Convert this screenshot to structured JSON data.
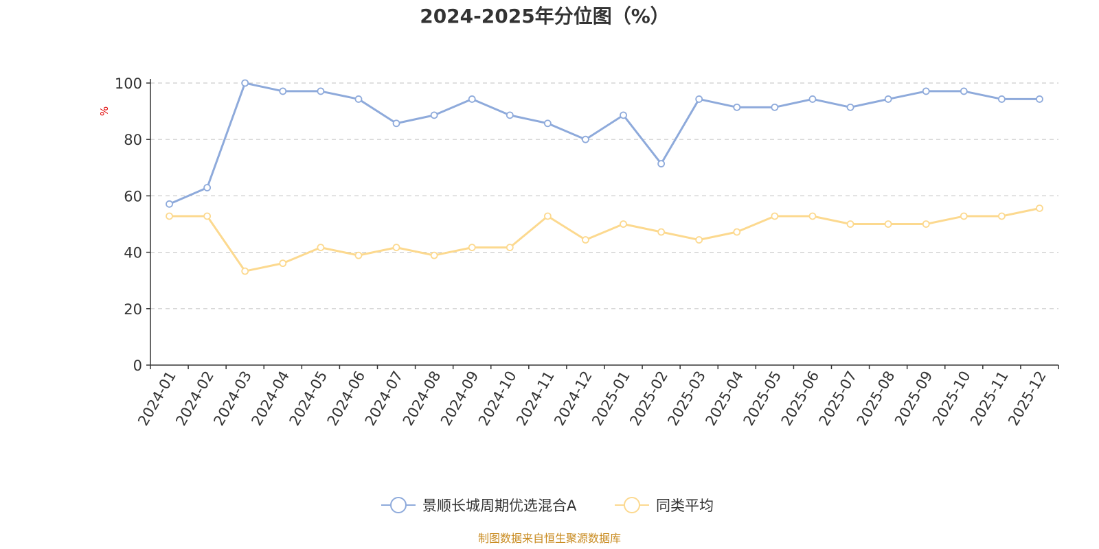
{
  "chart_data": {
    "type": "line",
    "title": "2024-2025年分位图（%）",
    "ylabel": "%",
    "ylim": [
      0,
      100
    ],
    "yticks": [
      0,
      20,
      40,
      60,
      80,
      100
    ],
    "grid": true,
    "legend_position": "bottom",
    "categories": [
      "2024-01",
      "2024-02",
      "2024-03",
      "2024-04",
      "2024-05",
      "2024-06",
      "2024-07",
      "2024-08",
      "2024-09",
      "2024-10",
      "2024-11",
      "2024-12",
      "2025-01",
      "2025-02",
      "2025-03",
      "2025-04",
      "2025-05",
      "2025-06",
      "2025-07",
      "2025-08",
      "2025-09",
      "2025-10",
      "2025-11",
      "2025-12"
    ],
    "series": [
      {
        "name": "景顺长城周期优选混合A",
        "color": "#8eaadb",
        "values": [
          57.1,
          62.9,
          100,
          97.1,
          97.1,
          94.3,
          85.7,
          88.6,
          94.3,
          88.6,
          85.7,
          80.0,
          88.6,
          71.4,
          94.3,
          91.4,
          91.4,
          94.3,
          91.4,
          94.3,
          97.1,
          97.1,
          94.3,
          94.3
        ]
      },
      {
        "name": "同类平均",
        "color": "#fcd98f",
        "values": [
          52.8,
          52.8,
          33.3,
          36.1,
          41.7,
          38.9,
          41.7,
          38.9,
          41.7,
          41.7,
          52.8,
          44.4,
          50.0,
          47.2,
          44.4,
          47.2,
          52.8,
          52.8,
          50.0,
          50.0,
          50.0,
          52.8,
          52.8,
          55.6
        ]
      }
    ]
  },
  "footer": {
    "source": "制图数据来自恒生聚源数据库"
  },
  "colors": {
    "axis": "#333333",
    "grid": "#cccccc",
    "source": "#c88a1e",
    "ylabel": "#e00000"
  }
}
